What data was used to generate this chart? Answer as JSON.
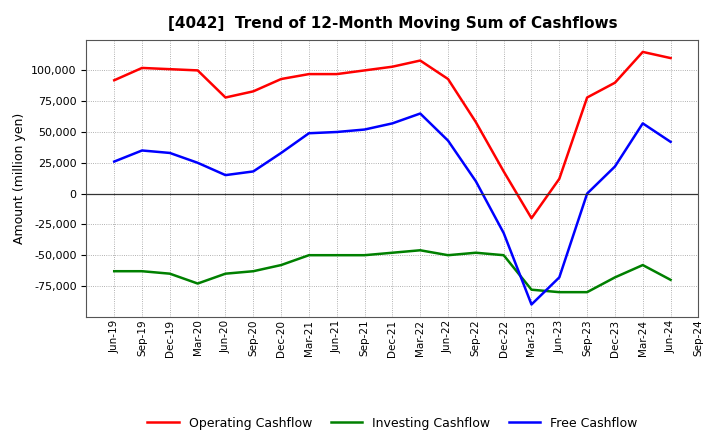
{
  "title": "[4042]  Trend of 12-Month Moving Sum of Cashflows",
  "ylabel": "Amount (million yen)",
  "x_labels": [
    "Jun-19",
    "Sep-19",
    "Dec-19",
    "Mar-20",
    "Jun-20",
    "Sep-20",
    "Dec-20",
    "Mar-21",
    "Jun-21",
    "Sep-21",
    "Dec-21",
    "Mar-22",
    "Jun-22",
    "Sep-22",
    "Dec-22",
    "Mar-23",
    "Jun-23",
    "Sep-23",
    "Dec-23",
    "Mar-24",
    "Jun-24",
    "Sep-24"
  ],
  "operating_cashflow": [
    92000,
    102000,
    101000,
    100000,
    78000,
    83000,
    93000,
    97000,
    97000,
    100000,
    103000,
    108000,
    93000,
    58000,
    18000,
    -20000,
    12000,
    78000,
    90000,
    115000,
    110000,
    null
  ],
  "investing_cashflow": [
    -63000,
    -63000,
    -65000,
    -73000,
    -65000,
    -63000,
    -58000,
    -50000,
    -50000,
    -50000,
    -48000,
    -46000,
    -50000,
    -48000,
    -50000,
    -78000,
    -80000,
    -80000,
    -68000,
    -58000,
    -70000,
    null
  ],
  "free_cashflow": [
    26000,
    35000,
    33000,
    25000,
    15000,
    18000,
    33000,
    49000,
    50000,
    52000,
    57000,
    65000,
    43000,
    10000,
    -32000,
    -90000,
    -68000,
    0,
    22000,
    57000,
    42000,
    null
  ],
  "operating_color": "#FF0000",
  "investing_color": "#008000",
  "free_color": "#0000FF",
  "ylim": [
    -100000,
    125000
  ],
  "yticks": [
    -75000,
    -50000,
    -25000,
    0,
    25000,
    50000,
    75000,
    100000
  ],
  "bg_color": "#FFFFFF",
  "plot_bg_color": "#FFFFFF",
  "grid_color": "#999999",
  "linewidth": 1.8
}
